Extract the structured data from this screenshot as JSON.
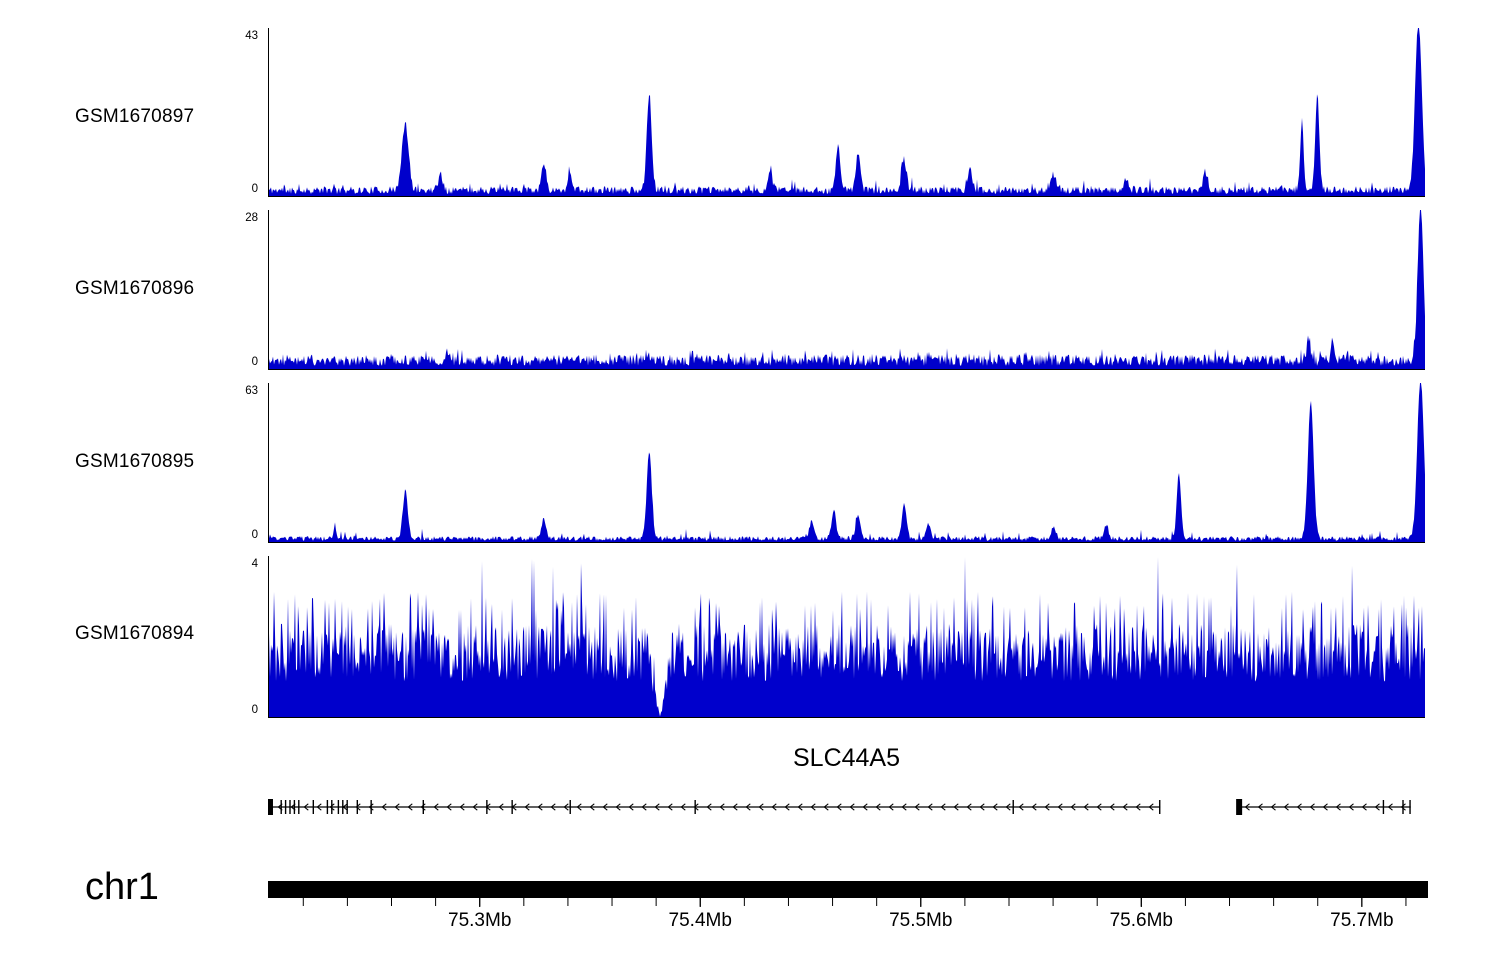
{
  "chart_data": {
    "type": "area",
    "figure_kind": "genome-browser-coverage-tracks",
    "signal_color": "#0000cc",
    "x_axis": {
      "chromosome": "chr1",
      "start_mb": 75.204,
      "end_mb": 75.73,
      "unit": "Mb",
      "major_ticks": [
        {
          "mb": 75.3,
          "label": "75.3Mb"
        },
        {
          "mb": 75.4,
          "label": "75.4Mb"
        },
        {
          "mb": 75.5,
          "label": "75.5Mb"
        },
        {
          "mb": 75.6,
          "label": "75.6Mb"
        },
        {
          "mb": 75.7,
          "label": "75.7Mb"
        }
      ],
      "minor_tick_start_mb": 75.22,
      "minor_tick_step_mb": 0.02,
      "minor_tick_end_mb": 75.72
    },
    "tracks": [
      {
        "label": "GSM1670897",
        "ymax": 43,
        "ymin": 0,
        "style": "peaks",
        "seed": 11,
        "noise": {
          "base": 0.035,
          "spike_prob": 0.06,
          "spike_amp": 0.06
        },
        "peaks": [
          {
            "mb": 75.266,
            "value": 17,
            "w": 0.004
          },
          {
            "mb": 75.282,
            "value": 4
          },
          {
            "mb": 75.329,
            "value": 7
          },
          {
            "mb": 75.341,
            "value": 4
          },
          {
            "mb": 75.377,
            "value": 25,
            "w": 0.003
          },
          {
            "mb": 75.432,
            "value": 4
          },
          {
            "mb": 75.463,
            "value": 11
          },
          {
            "mb": 75.472,
            "value": 9
          },
          {
            "mb": 75.493,
            "value": 8
          },
          {
            "mb": 75.523,
            "value": 5
          },
          {
            "mb": 75.561,
            "value": 4
          },
          {
            "mb": 75.594,
            "value": 3
          },
          {
            "mb": 75.63,
            "value": 4
          },
          {
            "mb": 75.674,
            "value": 18,
            "w": 0.002
          },
          {
            "mb": 75.681,
            "value": 24,
            "w": 0.0025
          },
          {
            "mb": 75.727,
            "value": 43,
            "w": 0.004
          }
        ]
      },
      {
        "label": "GSM1670896",
        "ymax": 28,
        "ymin": 0,
        "style": "peaks",
        "seed": 22,
        "noise": {
          "base": 0.055,
          "spike_prob": 0.15,
          "spike_amp": 0.05
        },
        "peaks": [
          {
            "mb": 75.677,
            "value": 4.5,
            "w": 0.002
          },
          {
            "mb": 75.688,
            "value": 3.5,
            "w": 0.0015
          },
          {
            "mb": 75.728,
            "value": 28,
            "w": 0.0035
          }
        ]
      },
      {
        "label": "GSM1670895",
        "ymax": 63,
        "ymin": 0,
        "style": "peaks",
        "seed": 33,
        "noise": {
          "base": 0.022,
          "spike_prob": 0.04,
          "spike_amp": 0.05
        },
        "peaks": [
          {
            "mb": 75.234,
            "value": 6,
            "w": 0.0015
          },
          {
            "mb": 75.266,
            "value": 19,
            "w": 0.003
          },
          {
            "mb": 75.329,
            "value": 8
          },
          {
            "mb": 75.377,
            "value": 35,
            "w": 0.003
          },
          {
            "mb": 75.451,
            "value": 7
          },
          {
            "mb": 75.461,
            "value": 11
          },
          {
            "mb": 75.472,
            "value": 9
          },
          {
            "mb": 75.493,
            "value": 14
          },
          {
            "mb": 75.504,
            "value": 6
          },
          {
            "mb": 75.561,
            "value": 5
          },
          {
            "mb": 75.585,
            "value": 5
          },
          {
            "mb": 75.618,
            "value": 26,
            "w": 0.0025
          },
          {
            "mb": 75.678,
            "value": 54,
            "w": 0.0035
          },
          {
            "mb": 75.728,
            "value": 63,
            "w": 0.004
          }
        ]
      },
      {
        "label": "GSM1670894",
        "ymax": 4,
        "ymin": 0,
        "style": "dense",
        "seed": 44,
        "noise": {
          "base": 0.22,
          "amp": 0.36,
          "spike3_prob": 0.12,
          "spike4_prob": 0.012
        },
        "dip_mb": 75.382,
        "dip_width_mb": 0.0055
      }
    ],
    "gene": {
      "name": "SLC44A5",
      "strand": "reverse",
      "segments": [
        {
          "start_mb": 75.2046,
          "end_mb": 75.6096
        },
        {
          "start_mb": 75.6443,
          "end_mb": 75.7235
        }
      ],
      "exons": [
        {
          "mb": 75.2049,
          "type": "box"
        },
        {
          "mb": 75.21
        },
        {
          "mb": 75.212
        },
        {
          "mb": 75.214
        },
        {
          "mb": 75.216
        },
        {
          "mb": 75.218
        },
        {
          "mb": 75.2246
        },
        {
          "mb": 75.231
        },
        {
          "mb": 75.233
        },
        {
          "mb": 75.236
        },
        {
          "mb": 75.238
        },
        {
          "mb": 75.24
        },
        {
          "mb": 75.2446
        },
        {
          "mb": 75.2509
        },
        {
          "mb": 75.2746
        },
        {
          "mb": 75.3035
        },
        {
          "mb": 75.315
        },
        {
          "mb": 75.3414
        },
        {
          "mb": 75.3982
        },
        {
          "mb": 75.5428
        },
        {
          "mb": 75.6094
        },
        {
          "mb": 75.6455,
          "type": "box"
        },
        {
          "mb": 75.7111
        },
        {
          "mb": 75.72
        },
        {
          "mb": 75.7232
        }
      ]
    },
    "chromosome": {
      "name": "chr1"
    }
  }
}
